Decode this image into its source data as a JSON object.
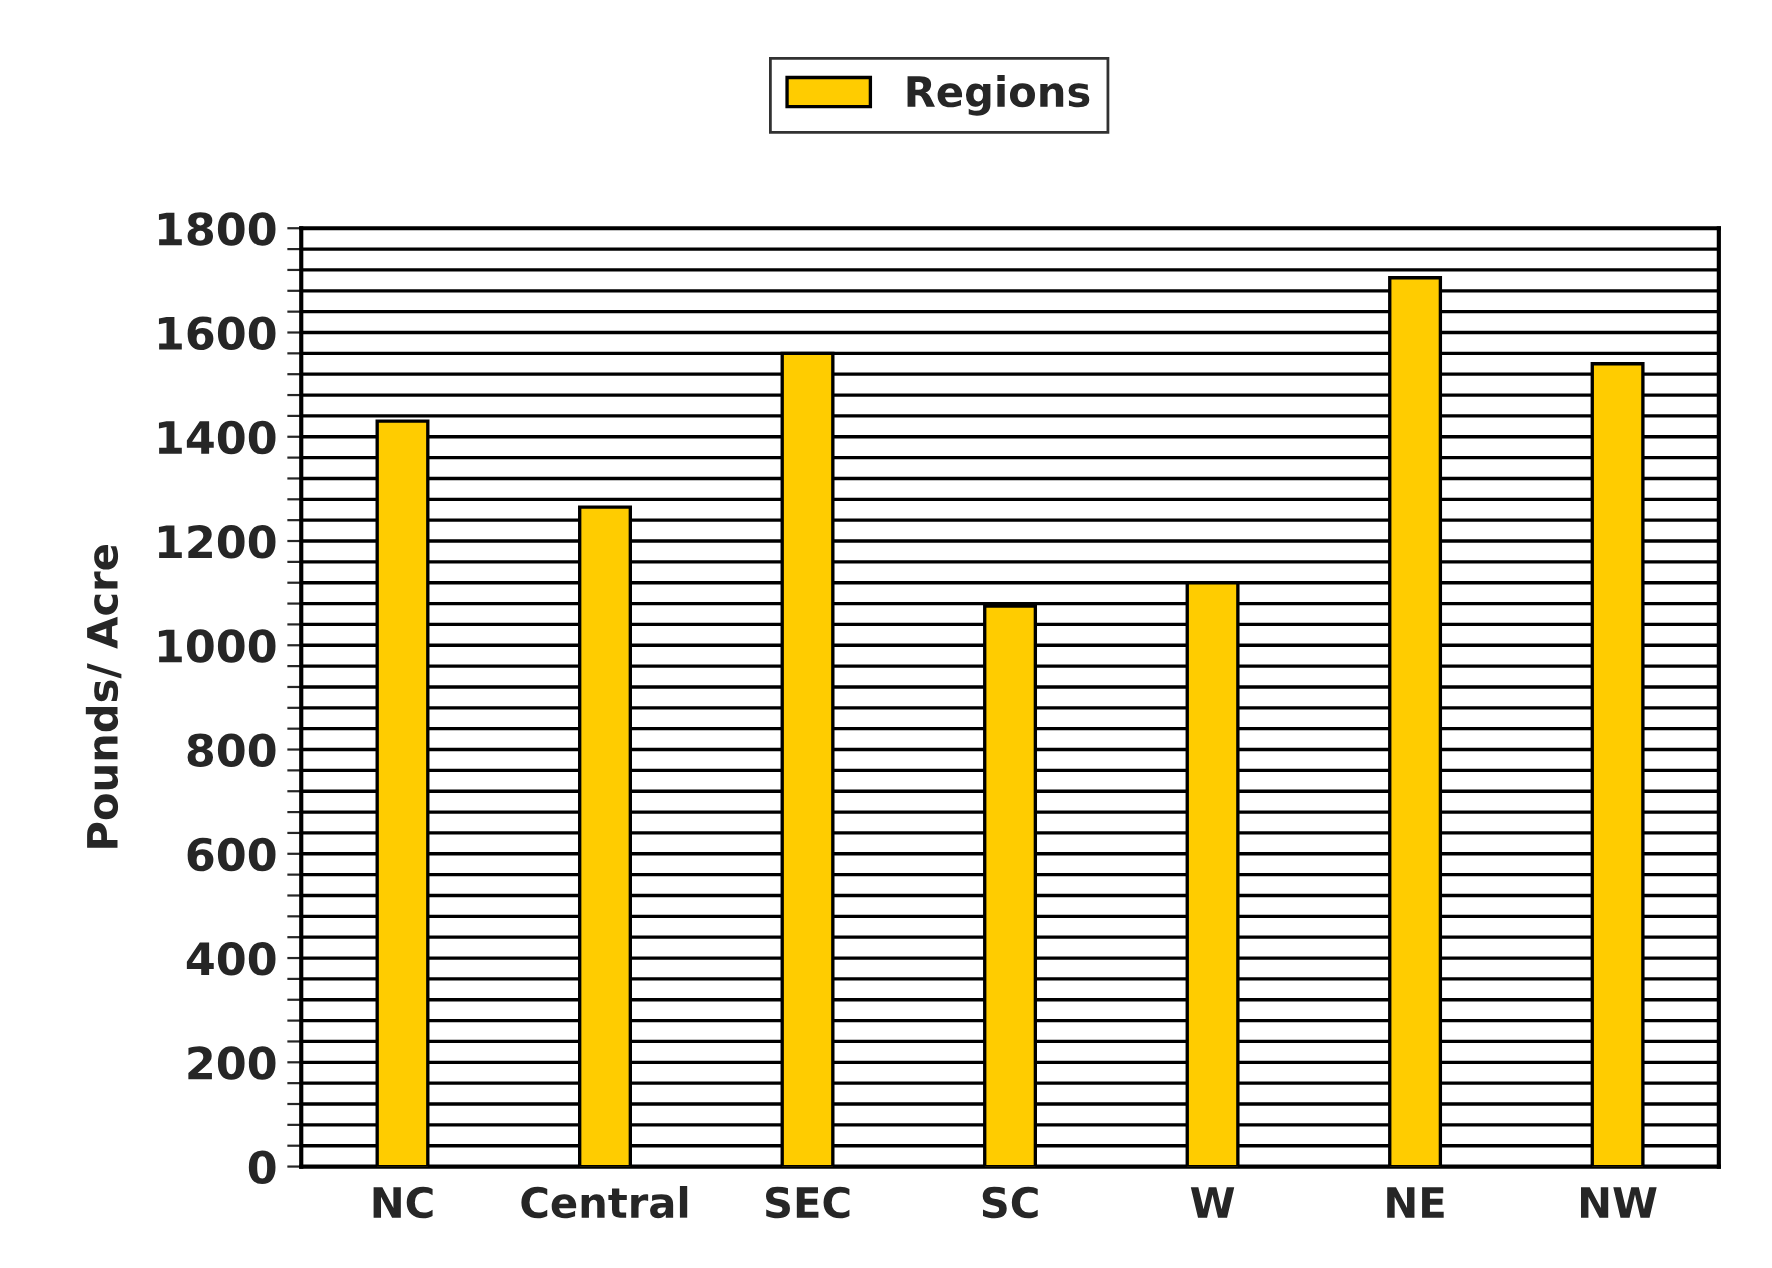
{
  "chart_data": {
    "type": "bar",
    "ylabel": "Pounds/ Acre",
    "categories": [
      "NC",
      "Central",
      "SEC",
      "SC",
      "W",
      "NE",
      "NW"
    ],
    "series": [
      {
        "name": "Regions",
        "color": "#ffcc00",
        "values": [
          1430,
          1265,
          1560,
          1075,
          1120,
          1705,
          1540
        ]
      }
    ],
    "ylim": [
      0,
      1800
    ],
    "yticks": [
      0,
      {
        "value": 40,
        "label": null
      },
      {
        "value": 80,
        "label": null
      },
      {
        "value": 120,
        "label": null
      },
      {
        "value": 160,
        "label": null
      },
      200,
      {
        "value": 240,
        "label": null
      },
      {
        "value": 280,
        "label": null
      },
      {
        "value": 320,
        "label": null
      },
      {
        "value": 360,
        "label": null
      },
      400,
      {
        "value": 440,
        "label": null
      },
      {
        "value": 480,
        "label": null
      },
      {
        "value": 520,
        "label": null
      },
      {
        "value": 560,
        "label": null
      },
      600,
      {
        "value": 640,
        "label": null
      },
      {
        "value": 680,
        "label": null
      },
      {
        "value": 720,
        "label": null
      },
      {
        "value": 760,
        "label": null
      },
      800,
      {
        "value": 840,
        "label": null
      },
      {
        "value": 880,
        "label": null
      },
      {
        "value": 920,
        "label": null
      },
      {
        "value": 960,
        "label": null
      },
      1000,
      {
        "value": 1040,
        "label": null
      },
      {
        "value": 1080,
        "label": null
      },
      {
        "value": 1120,
        "label": null
      },
      {
        "value": 1160,
        "label": null
      },
      1200,
      {
        "value": 1240,
        "label": null
      },
      {
        "value": 1280,
        "label": null
      },
      {
        "value": 1320,
        "label": null
      },
      {
        "value": 1360,
        "label": null
      },
      1400,
      {
        "value": 1440,
        "label": null
      },
      {
        "value": 1480,
        "label": null
      },
      {
        "value": 1520,
        "label": null
      },
      {
        "value": 1560,
        "label": null
      },
      1600,
      {
        "value": 1640,
        "label": null
      },
      {
        "value": 1680,
        "label": null
      },
      {
        "value": 1720,
        "label": null
      },
      {
        "value": 1760,
        "label": null
      },
      1800
    ],
    "grid": "y",
    "legend": "top"
  }
}
